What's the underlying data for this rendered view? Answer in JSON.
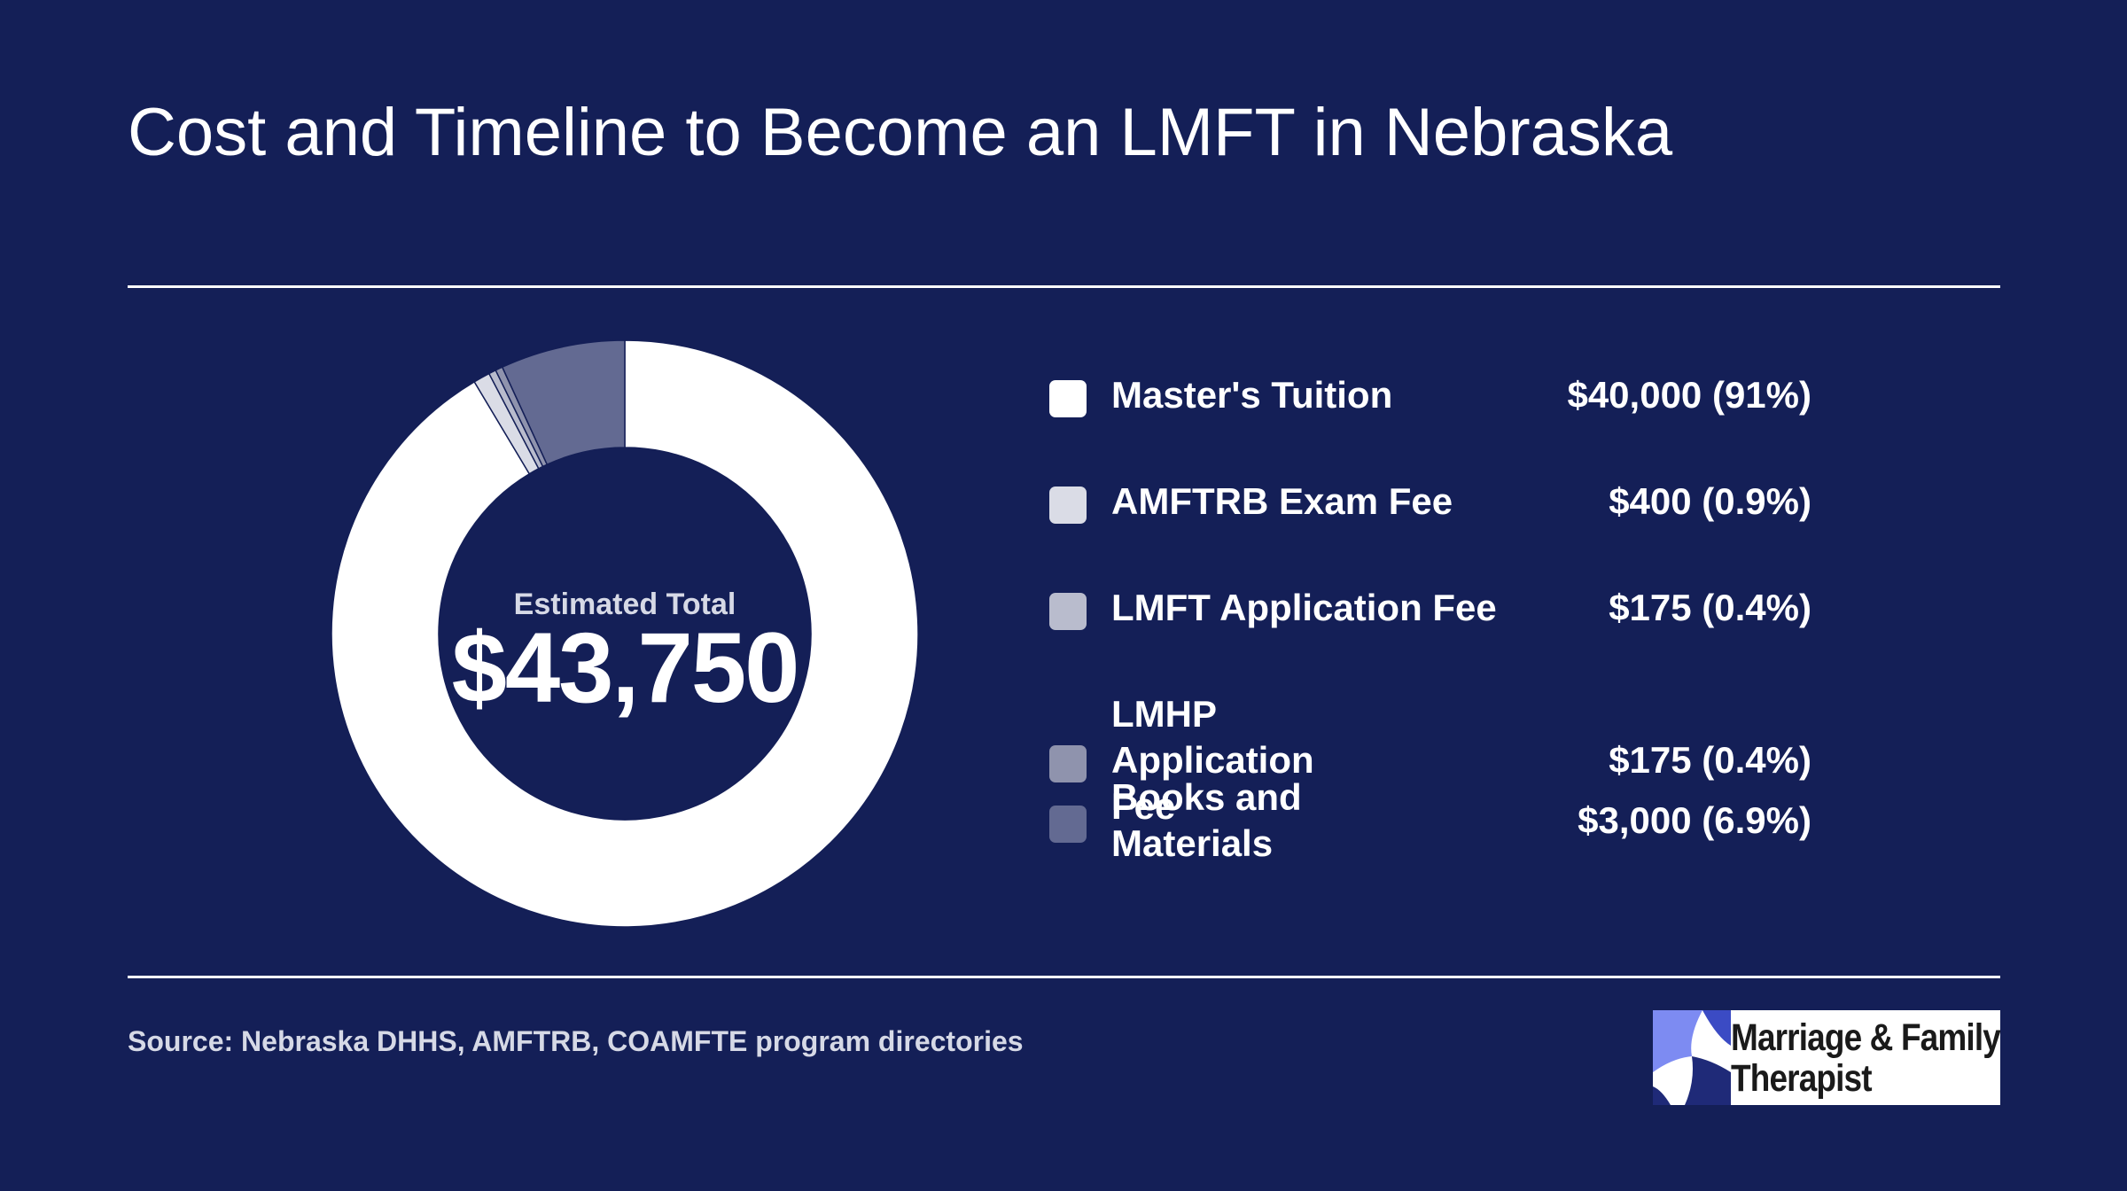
{
  "header": {
    "title": "Cost and Timeline to Become an LMFT in Nebraska"
  },
  "chart_data": {
    "type": "pie",
    "categories": [
      "Master's Tuition",
      "AMFTRB Exam Fee",
      "LMFT Application Fee",
      "LMHP Application Fee",
      "Books and Materials"
    ],
    "values": [
      40000,
      400,
      175,
      175,
      3000
    ],
    "value_labels": [
      "$40,000 (91%)",
      "$400 (0.9%)",
      "$175 (0.4%)",
      "$175 (0.4%)",
      "$3,000 (6.9%)"
    ],
    "colors": [
      "#ffffff",
      "#dadce6",
      "#b9bccd",
      "#8f93ad",
      "#636a92"
    ],
    "center_label": "Estimated Total",
    "center_value": "$43,750",
    "legend_position": "right",
    "hole": true
  },
  "footer": {
    "source": "Source: Nebraska DHHS, AMFTRB, COAMFTE program directories",
    "logo_text": [
      "Marriage & Family",
      "Therapist"
    ]
  },
  "colors": {
    "background": "#141f57",
    "rule": "#ffffff",
    "logo_accent_light": "#7d8bf2",
    "logo_accent_dark": "#1f2a78"
  },
  "icons": {
    "logo": "marriage-family-therapist-logo-icon"
  }
}
